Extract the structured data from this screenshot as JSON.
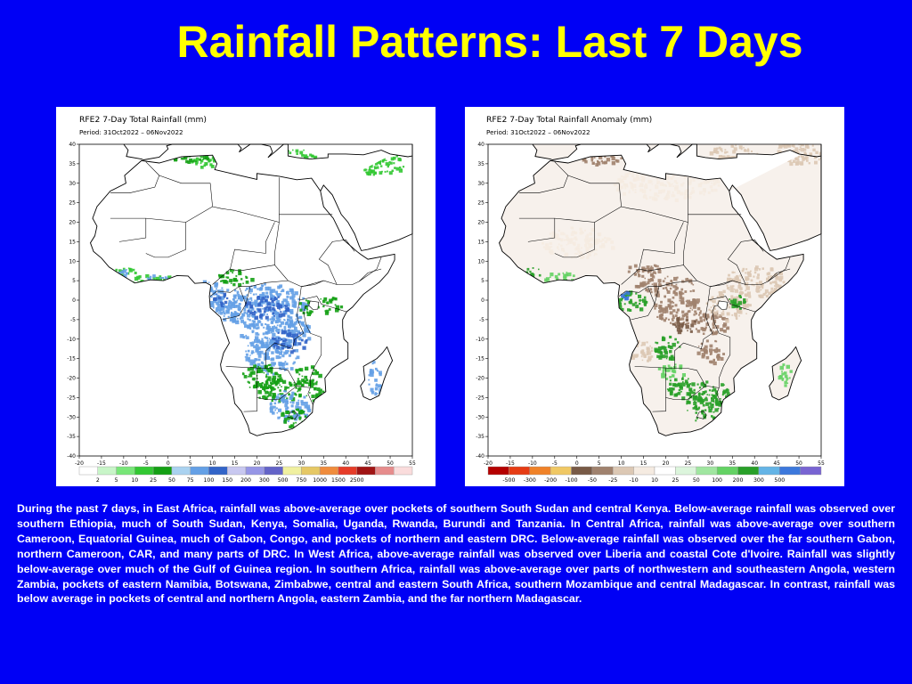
{
  "slide": {
    "title": "Rainfall Patterns: Last 7 Days",
    "caption": "During the past 7 days, in East Africa, rainfall was above-average over pockets of southern South Sudan and central Kenya. Below-average rainfall was observed over southern Ethiopia, much of South Sudan, Kenya, Somalia, Uganda, Rwanda, Burundi and Tanzania. In Central Africa, rainfall was above-average over southern Cameroon, Equatorial Guinea, much of Gabon, Congo, and pockets of northern and eastern DRC. Below-average rainfall was observed over the far southern Gabon, northern Cameroon, CAR, and many parts of DRC. In West Africa, above-average rainfall was observed over Liberia and coastal Cote d'Ivoire. Rainfall was slightly below-average over much of the Gulf of Guinea region. In southern Africa, rainfall was above-average over parts of northwestern and southeastern Angola, western Zambia, pockets of eastern Namibia, Botswana, Zimbabwe, central and eastern South Africa, southern Mozambique and central Madagascar. In contrast, rainfall was below average in pockets of central and northern Angola, eastern Zambia, and the far northern Madagascar."
  },
  "maps": [
    {
      "title": "RFE2 7-Day Total Rainfall (mm)",
      "period": "Period: 31Oct2022 – 06Nov2022",
      "legend": {
        "labels": [
          "2",
          "5",
          "10",
          "25",
          "50",
          "75",
          "100",
          "150",
          "200",
          "300",
          "500",
          "750",
          "1000",
          "1500",
          "2500"
        ],
        "colors": [
          "#ffffff",
          "#c8f5c8",
          "#78e678",
          "#32c832",
          "#14a014",
          "#aad2f0",
          "#64a0e6",
          "#3264c8",
          "#c8c8f0",
          "#9696e6",
          "#6464c8",
          "#f0f0a0",
          "#e6c864",
          "#f08c3c",
          "#e63c28",
          "#a01414",
          "#e68c8c",
          "#fadcdc"
        ]
      }
    },
    {
      "title": "RFE2 7-Day Total Rainfall Anomaly (mm)",
      "period": "Period: 31Oct2022 – 06Nov2022",
      "legend": {
        "labels": [
          "-500",
          "-300",
          "-200",
          "-100",
          "-50",
          "-25",
          "-10",
          "10",
          "25",
          "50",
          "100",
          "200",
          "300",
          "500"
        ],
        "colors": [
          "#b40000",
          "#e63c14",
          "#f08228",
          "#f0c864",
          "#785a46",
          "#a0826e",
          "#dcc8b4",
          "#f5ebe1",
          "#ffffff",
          "#dcf5dc",
          "#a0e6a0",
          "#64d264",
          "#28a028",
          "#64b4e6",
          "#3c78dc",
          "#7864d2"
        ]
      }
    }
  ],
  "axes": {
    "x_ticks": [
      "-20",
      "-15",
      "-10",
      "-5",
      "0",
      "5",
      "10",
      "15",
      "20",
      "25",
      "30",
      "35",
      "40",
      "45",
      "50",
      "55"
    ],
    "y_ticks": [
      "40",
      "35",
      "30",
      "25",
      "20",
      "15",
      "10",
      "5",
      "0",
      "-5",
      "-10",
      "-15",
      "-20",
      "-25",
      "-30",
      "-35",
      "-40"
    ],
    "x_range": [
      -20,
      55
    ],
    "y_range": [
      -40,
      40
    ]
  }
}
